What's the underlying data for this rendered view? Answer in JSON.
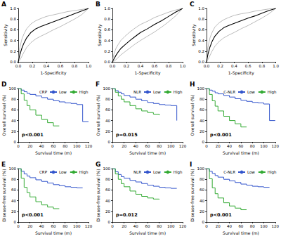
{
  "chart_data": [
    {
      "type": "line",
      "title": "A",
      "x_label": "1-Specificity",
      "y_label": "Sensitivity",
      "xlim": [
        0,
        1
      ],
      "ylim": [
        0,
        1
      ],
      "xticks": [
        {
          "value": 0,
          "label": "0.0"
        },
        0.2,
        0.4,
        0.6,
        0.8,
        {
          "value": 1,
          "label": "1.0"
        }
      ],
      "yticks": [
        {
          "value": 0,
          "label": "0.0"
        },
        0.2,
        0.4,
        0.6,
        0.8,
        {
          "value": 1,
          "label": "1.0"
        }
      ],
      "grid": false,
      "series": [
        {
          "color": "#aaaaaa",
          "x": [
            0,
            0.02,
            0.05,
            0.08,
            0.12,
            0.18,
            0.25,
            0.32,
            0.4,
            0.5,
            0.6,
            0.7,
            0.8,
            0.9,
            1.0
          ],
          "values": [
            0,
            0.03,
            0.1,
            0.18,
            0.27,
            0.36,
            0.43,
            0.48,
            0.53,
            0.6,
            0.66,
            0.73,
            0.8,
            0.88,
            1.0
          ]
        },
        {
          "color": "#aaaaaa",
          "x": [
            0,
            0.02,
            0.05,
            0.08,
            0.12,
            0.18,
            0.25,
            0.32,
            0.4,
            0.5,
            0.6,
            0.7,
            0.8,
            0.9,
            1.0
          ],
          "values": [
            0,
            0.25,
            0.42,
            0.52,
            0.62,
            0.71,
            0.77,
            0.81,
            0.85,
            0.88,
            0.91,
            0.94,
            0.96,
            0.98,
            1.0
          ]
        },
        {
          "color": "#000000",
          "x": [
            0,
            0.02,
            0.05,
            0.08,
            0.12,
            0.18,
            0.25,
            0.32,
            0.4,
            0.5,
            0.6,
            0.7,
            0.8,
            0.9,
            1.0
          ],
          "values": [
            0,
            0.12,
            0.25,
            0.35,
            0.45,
            0.55,
            0.62,
            0.66,
            0.7,
            0.75,
            0.8,
            0.85,
            0.9,
            0.95,
            1.0
          ]
        }
      ]
    },
    {
      "type": "line",
      "title": "B",
      "x_label": "1-Specificity",
      "y_label": "Sensitivity",
      "xlim": [
        0,
        1
      ],
      "ylim": [
        0,
        1
      ],
      "xticks": [
        {
          "value": 0,
          "label": "0.0"
        },
        0.2,
        0.4,
        0.6,
        0.8,
        {
          "value": 1,
          "label": "1.0"
        }
      ],
      "yticks": [
        {
          "value": 0,
          "label": "0.0"
        },
        0.2,
        0.4,
        0.6,
        0.8,
        {
          "value": 1,
          "label": "1.0"
        }
      ],
      "grid": false,
      "series": [
        {
          "color": "#aaaaaa",
          "x": [
            0,
            0.02,
            0.05,
            0.08,
            0.12,
            0.18,
            0.25,
            0.32,
            0.4,
            0.5,
            0.6,
            0.7,
            0.8,
            0.9,
            1.0
          ],
          "values": [
            0,
            0.01,
            0.04,
            0.08,
            0.13,
            0.19,
            0.26,
            0.33,
            0.4,
            0.48,
            0.56,
            0.65,
            0.75,
            0.86,
            1.0
          ]
        },
        {
          "color": "#aaaaaa",
          "x": [
            0,
            0.02,
            0.05,
            0.08,
            0.12,
            0.18,
            0.25,
            0.32,
            0.4,
            0.5,
            0.6,
            0.7,
            0.8,
            0.9,
            1.0
          ],
          "values": [
            0,
            0.14,
            0.25,
            0.32,
            0.4,
            0.48,
            0.56,
            0.63,
            0.7,
            0.76,
            0.83,
            0.88,
            0.93,
            0.97,
            1.0
          ]
        },
        {
          "color": "#000000",
          "x": [
            0,
            0.02,
            0.05,
            0.08,
            0.12,
            0.18,
            0.25,
            0.32,
            0.4,
            0.5,
            0.6,
            0.7,
            0.8,
            0.9,
            1.0
          ],
          "values": [
            0,
            0.05,
            0.12,
            0.18,
            0.25,
            0.32,
            0.4,
            0.47,
            0.55,
            0.62,
            0.7,
            0.77,
            0.85,
            0.93,
            1.0
          ]
        }
      ]
    },
    {
      "type": "line",
      "title": "C",
      "x_label": "1-Specificity",
      "y_label": "Sensitivity",
      "xlim": [
        0,
        1
      ],
      "ylim": [
        0,
        1
      ],
      "xticks": [
        {
          "value": 0,
          "label": "0.0"
        },
        0.2,
        0.4,
        0.6,
        0.8,
        {
          "value": 1,
          "label": "1.0"
        }
      ],
      "yticks": [
        {
          "value": 0,
          "label": "0.0"
        },
        0.2,
        0.4,
        0.6,
        0.8,
        {
          "value": 1,
          "label": "1.0"
        }
      ],
      "grid": false,
      "series": [
        {
          "color": "#aaaaaa",
          "x": [
            0,
            0.02,
            0.05,
            0.08,
            0.12,
            0.18,
            0.25,
            0.32,
            0.4,
            0.5,
            0.6,
            0.7,
            0.8,
            0.9,
            1.0
          ],
          "values": [
            0,
            0.04,
            0.12,
            0.2,
            0.29,
            0.38,
            0.45,
            0.5,
            0.55,
            0.62,
            0.68,
            0.75,
            0.82,
            0.9,
            1.0
          ]
        },
        {
          "color": "#aaaaaa",
          "x": [
            0,
            0.02,
            0.05,
            0.08,
            0.12,
            0.18,
            0.25,
            0.32,
            0.4,
            0.5,
            0.6,
            0.7,
            0.8,
            0.9,
            1.0
          ],
          "values": [
            0,
            0.27,
            0.45,
            0.55,
            0.65,
            0.73,
            0.79,
            0.83,
            0.87,
            0.9,
            0.92,
            0.95,
            0.97,
            0.99,
            1.0
          ]
        },
        {
          "color": "#000000",
          "x": [
            0,
            0.02,
            0.05,
            0.08,
            0.12,
            0.18,
            0.25,
            0.32,
            0.4,
            0.5,
            0.6,
            0.7,
            0.8,
            0.9,
            1.0
          ],
          "values": [
            0,
            0.14,
            0.28,
            0.38,
            0.48,
            0.57,
            0.64,
            0.68,
            0.72,
            0.77,
            0.82,
            0.86,
            0.91,
            0.96,
            1.0
          ]
        }
      ]
    },
    {
      "type": "step",
      "title": "D",
      "x_label": "Survival time (m)",
      "y_label": "Overall survival (%)",
      "xlim": [
        0,
        120
      ],
      "ylim": [
        0,
        100
      ],
      "xticks": [
        0,
        20,
        40,
        60,
        80,
        100,
        120
      ],
      "yticks": [
        0,
        20,
        40,
        60,
        80,
        100
      ],
      "grid": false,
      "legend": "upper right",
      "legend_title": "CRP",
      "annotations": [
        "p<0.001"
      ],
      "series": [
        {
          "name": "Low",
          "color": "#3355cc",
          "x": [
            0,
            5,
            10,
            15,
            20,
            30,
            40,
            50,
            60,
            70,
            80,
            90,
            100,
            110,
            120
          ],
          "values": [
            100,
            97,
            94,
            91,
            89,
            86,
            83,
            80,
            77,
            75,
            73,
            72,
            70,
            38,
            38
          ]
        },
        {
          "name": "High",
          "color": "#33aa33",
          "x": [
            0,
            5,
            10,
            15,
            20,
            30,
            40,
            50,
            60,
            70
          ],
          "values": [
            100,
            90,
            78,
            68,
            60,
            50,
            42,
            36,
            30,
            30
          ]
        }
      ]
    },
    {
      "type": "step",
      "title": "F",
      "x_label": "Survival time (m)",
      "y_label": "Overall survival (%)",
      "xlim": [
        0,
        120
      ],
      "ylim": [
        0,
        100
      ],
      "xticks": [
        0,
        20,
        40,
        60,
        80,
        100,
        120
      ],
      "yticks": [
        0,
        20,
        40,
        60,
        80,
        100
      ],
      "grid": false,
      "legend": "upper right",
      "legend_title": "NLR",
      "annotations": [
        "p=0.015"
      ],
      "series": [
        {
          "name": "Low",
          "color": "#3355cc",
          "x": [
            0,
            5,
            10,
            15,
            20,
            30,
            40,
            50,
            60,
            70,
            80,
            90,
            100,
            110
          ],
          "values": [
            100,
            96,
            93,
            90,
            87,
            84,
            80,
            77,
            74,
            72,
            70,
            69,
            68,
            40
          ]
        },
        {
          "name": "High",
          "color": "#33aa33",
          "x": [
            0,
            5,
            10,
            15,
            20,
            30,
            40,
            50,
            60,
            70,
            80
          ],
          "values": [
            100,
            93,
            86,
            80,
            75,
            68,
            62,
            58,
            55,
            52,
            50
          ]
        }
      ]
    },
    {
      "type": "step",
      "title": "H",
      "x_label": "Survival time (m)",
      "y_label": "Overall survival (%)",
      "xlim": [
        0,
        120
      ],
      "ylim": [
        0,
        100
      ],
      "xticks": [
        0,
        20,
        40,
        60,
        80,
        100,
        120
      ],
      "yticks": [
        0,
        20,
        40,
        60,
        80,
        100
      ],
      "grid": false,
      "legend": "upper right",
      "legend_title": "C-NLR",
      "annotations": [
        "p<0.001"
      ],
      "series": [
        {
          "name": "Low",
          "color": "#3355cc",
          "x": [
            0,
            5,
            10,
            15,
            20,
            30,
            40,
            50,
            60,
            70,
            80,
            90,
            100,
            110,
            120
          ],
          "values": [
            100,
            97,
            95,
            92,
            90,
            87,
            84,
            81,
            78,
            76,
            74,
            73,
            71,
            40,
            40
          ]
        },
        {
          "name": "High",
          "color": "#33aa33",
          "x": [
            0,
            5,
            10,
            15,
            20,
            30,
            40,
            50,
            60,
            70
          ],
          "values": [
            100,
            89,
            77,
            67,
            58,
            48,
            40,
            34,
            28,
            28
          ]
        }
      ]
    },
    {
      "type": "step",
      "title": "E",
      "x_label": "Survival time (m)",
      "y_label": "Disease-free survival (%)",
      "xlim": [
        0,
        120
      ],
      "ylim": [
        0,
        100
      ],
      "xticks": [
        0,
        20,
        40,
        60,
        80,
        100,
        120
      ],
      "yticks": [
        0,
        20,
        40,
        60,
        80,
        100
      ],
      "grid": false,
      "legend": "upper right",
      "legend_title": "CRP",
      "annotations": [
        "p<0.001"
      ],
      "series": [
        {
          "name": "Low",
          "color": "#3355cc",
          "x": [
            0,
            5,
            10,
            15,
            20,
            30,
            40,
            50,
            60,
            70,
            80,
            90,
            100,
            110
          ],
          "values": [
            100,
            95,
            90,
            86,
            83,
            79,
            76,
            73,
            70,
            68,
            66,
            65,
            64,
            64
          ]
        },
        {
          "name": "High",
          "color": "#33aa33",
          "x": [
            0,
            5,
            10,
            15,
            20,
            30,
            40,
            50,
            60,
            70
          ],
          "values": [
            100,
            82,
            65,
            55,
            47,
            38,
            32,
            28,
            25,
            25
          ]
        }
      ]
    },
    {
      "type": "step",
      "title": "G",
      "x_label": "Survival time (m)",
      "y_label": "Disease-free survival (%)",
      "xlim": [
        0,
        120
      ],
      "ylim": [
        0,
        100
      ],
      "xticks": [
        0,
        20,
        40,
        60,
        80,
        100,
        120
      ],
      "yticks": [
        0,
        20,
        40,
        60,
        80,
        100
      ],
      "grid": false,
      "legend": "upper right",
      "legend_title": "NLR",
      "annotations": [
        "p=0.012"
      ],
      "series": [
        {
          "name": "Low",
          "color": "#3355cc",
          "x": [
            0,
            5,
            10,
            15,
            20,
            30,
            40,
            50,
            60,
            70,
            80,
            90,
            100,
            110
          ],
          "values": [
            100,
            94,
            89,
            85,
            82,
            78,
            75,
            72,
            69,
            67,
            65,
            64,
            63,
            63
          ]
        },
        {
          "name": "High",
          "color": "#33aa33",
          "x": [
            0,
            5,
            10,
            15,
            20,
            30,
            40,
            50,
            60,
            70,
            80
          ],
          "values": [
            100,
            90,
            80,
            72,
            66,
            58,
            52,
            48,
            45,
            43,
            42
          ]
        }
      ]
    },
    {
      "type": "step",
      "title": "I",
      "x_label": "Survival time (m)",
      "y_label": "Disease-free survival (%)",
      "xlim": [
        0,
        120
      ],
      "ylim": [
        0,
        100
      ],
      "xticks": [
        0,
        20,
        40,
        60,
        80,
        100,
        120
      ],
      "yticks": [
        0,
        20,
        40,
        60,
        80,
        100
      ],
      "grid": false,
      "legend": "upper right",
      "legend_title": "C-NLR",
      "annotations": [
        "p<0.001"
      ],
      "series": [
        {
          "name": "Low",
          "color": "#3355cc",
          "x": [
            0,
            5,
            10,
            15,
            20,
            30,
            40,
            50,
            60,
            70,
            80,
            90,
            100,
            110
          ],
          "values": [
            100,
            95,
            91,
            87,
            84,
            80,
            77,
            74,
            71,
            69,
            67,
            66,
            65,
            65
          ]
        },
        {
          "name": "High",
          "color": "#33aa33",
          "x": [
            0,
            5,
            10,
            15,
            20,
            30,
            40,
            50,
            60,
            70
          ],
          "values": [
            100,
            81,
            64,
            53,
            45,
            36,
            30,
            26,
            23,
            23
          ]
        }
      ]
    }
  ]
}
